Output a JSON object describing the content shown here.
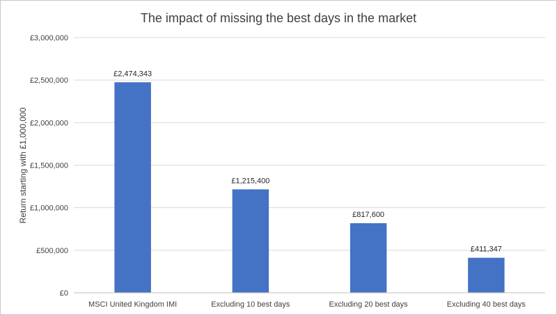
{
  "chart_data": {
    "type": "bar",
    "title": "The impact of missing the best days in the market",
    "ylabel": "Return starting with £1,000,000",
    "xlabel": "",
    "categories": [
      "MSCI United Kingdom IMI",
      "Excluding 10 best days",
      "Excluding 20 best days",
      "Excluding 40 best days"
    ],
    "values": [
      2474343,
      1215400,
      817600,
      411347
    ],
    "data_labels": [
      "£2,474,343",
      "£1,215,400",
      "£817,600",
      "£411,347"
    ],
    "ylim": [
      0,
      3000000
    ],
    "yticks": [
      0,
      500000,
      1000000,
      1500000,
      2000000,
      2500000,
      3000000
    ],
    "ytick_labels": [
      "£0",
      "£500,000",
      "£1,000,000",
      "£1,500,000",
      "£2,000,000",
      "£2,500,000",
      "£3,000,000"
    ],
    "grid": true,
    "bar_color": "#4472C4"
  }
}
